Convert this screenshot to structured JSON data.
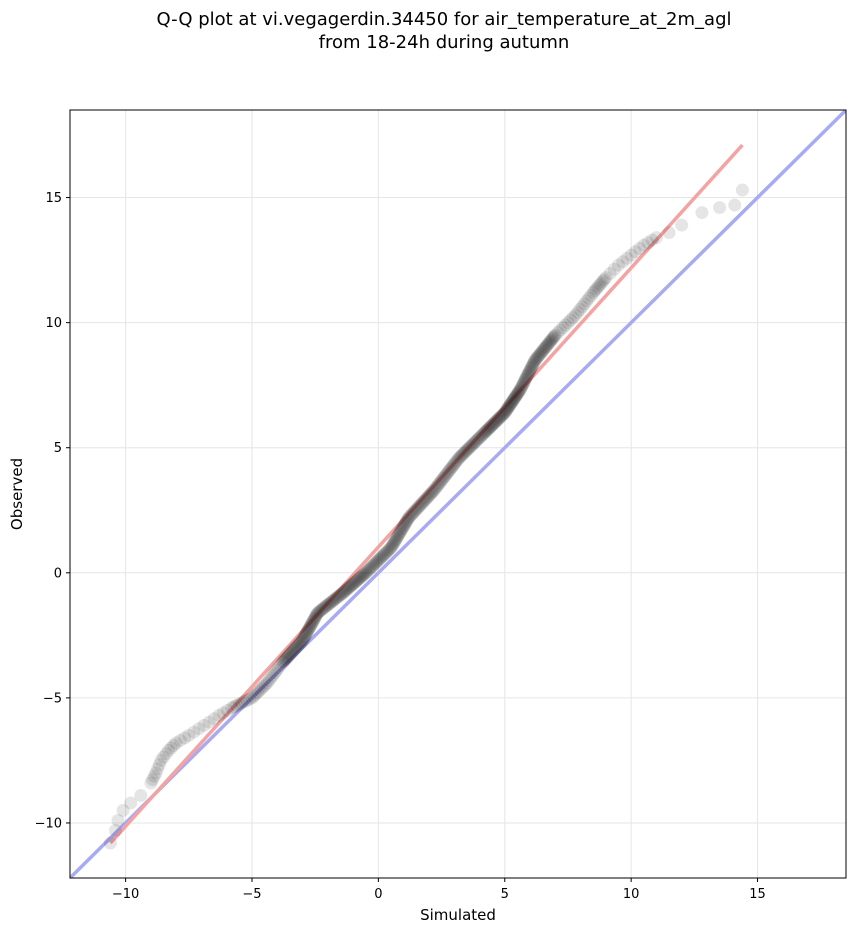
{
  "chart_data": {
    "type": "scatter",
    "title_line1": "Q-Q plot at vi.vegagerdin.34450 for air_temperature_at_2m_agl",
    "title_line2": "from 18-24h during autumn",
    "xlabel": "Simulated",
    "ylabel": "Observed",
    "xlim": [
      -12.2,
      18.5
    ],
    "ylim": [
      -12.2,
      18.5
    ],
    "xticks": [
      -10,
      -5,
      0,
      5,
      10,
      15
    ],
    "yticks": [
      -10,
      -5,
      0,
      5,
      10,
      15
    ],
    "xtick_labels": [
      "−10",
      "−5",
      "0",
      "5",
      "10",
      "15"
    ],
    "ytick_labels": [
      "−10",
      "−5",
      "0",
      "5",
      "10",
      "15"
    ],
    "grid": true,
    "qq_curve": [
      [
        -10.6,
        -10.8
      ],
      [
        -10.4,
        -10.3
      ],
      [
        -10.3,
        -9.9
      ],
      [
        -10.1,
        -9.5
      ],
      [
        -9.8,
        -9.2
      ],
      [
        -9.4,
        -8.9
      ],
      [
        -9.0,
        -8.4
      ],
      [
        -8.8,
        -8.0
      ],
      [
        -8.6,
        -7.5
      ],
      [
        -8.3,
        -7.1
      ],
      [
        -8.0,
        -6.8
      ],
      [
        -7.5,
        -6.5
      ],
      [
        -6.9,
        -6.1
      ],
      [
        -6.3,
        -5.7
      ],
      [
        -5.8,
        -5.4
      ],
      [
        -5.0,
        -5.0
      ],
      [
        -4.4,
        -4.4
      ],
      [
        -3.8,
        -3.6
      ],
      [
        -3.0,
        -2.7
      ],
      [
        -2.4,
        -1.6
      ],
      [
        -1.4,
        -0.8
      ],
      [
        -0.5,
        0.0
      ],
      [
        0.5,
        1.0
      ],
      [
        1.2,
        2.2
      ],
      [
        2.2,
        3.3
      ],
      [
        3.2,
        4.6
      ],
      [
        4.2,
        5.6
      ],
      [
        5.0,
        6.4
      ],
      [
        5.6,
        7.3
      ],
      [
        6.2,
        8.5
      ],
      [
        7.0,
        9.5
      ],
      [
        7.8,
        10.3
      ],
      [
        8.5,
        11.2
      ],
      [
        9.0,
        11.8
      ],
      [
        9.5,
        12.3
      ],
      [
        10.0,
        12.7
      ],
      [
        10.5,
        13.1
      ],
      [
        11.0,
        13.4
      ],
      [
        11.5,
        13.6
      ],
      [
        12.0,
        13.9
      ],
      [
        12.8,
        14.4
      ],
      [
        13.5,
        14.6
      ],
      [
        14.1,
        14.7
      ],
      [
        14.4,
        15.3
      ]
    ],
    "fit_line": {
      "x": [
        -10.6,
        14.4
      ],
      "y": [
        -10.8,
        17.1
      ],
      "color": "#f4a3a3"
    },
    "identity_line": {
      "x": [
        -12.2,
        18.5
      ],
      "y": [
        -12.2,
        18.5
      ],
      "color": "#aaaaf2"
    },
    "point_color": "#000000"
  }
}
